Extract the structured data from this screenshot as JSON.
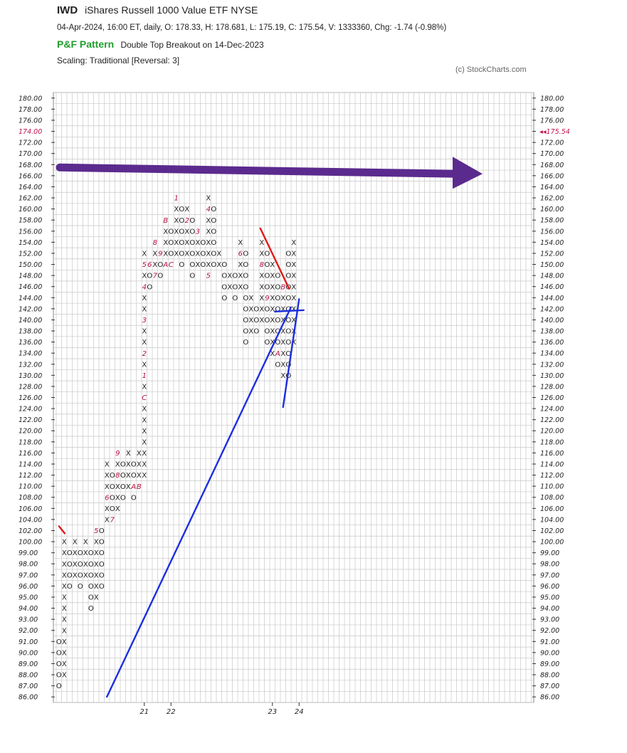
{
  "header": {
    "ticker": "IWD",
    "name": "iShares Russell 1000 Value ETF  NYSE",
    "quote": "04-Apr-2024, 16:00 ET, daily, O: 178.33, H: 178.681, L: 175.19, C: 175.54, V: 1333360, Chg: -1.74 (-0.98%)",
    "pattern_label": "P&F Pattern",
    "pattern_text": "Double Top Breakout on 14-Dec-2023",
    "scaling": "Scaling: Traditional [Reversal: 3]",
    "copyright": "(c) StockCharts.com"
  },
  "chart_data": {
    "type": "point-and-figure",
    "boxes": [
      "180.00",
      "178.00",
      "176.00",
      "174.00",
      "172.00",
      "170.00",
      "168.00",
      "166.00",
      "164.00",
      "162.00",
      "160.00",
      "158.00",
      "156.00",
      "154.00",
      "152.00",
      "150.00",
      "148.00",
      "146.00",
      "144.00",
      "142.00",
      "140.00",
      "138.00",
      "136.00",
      "134.00",
      "132.00",
      "130.00",
      "128.00",
      "126.00",
      "124.00",
      "122.00",
      "120.00",
      "118.00",
      "116.00",
      "114.00",
      "112.00",
      "110.00",
      "108.00",
      "106.00",
      "104.00",
      "102.00",
      "100.00",
      "99.00",
      "98.00",
      "97.00",
      "96.00",
      "95.00",
      "94.00",
      "93.00",
      "92.00",
      "91.00",
      "90.00",
      "89.00",
      "88.00",
      "87.00",
      "86.00"
    ],
    "highlight_level": "174.00",
    "last_price_label": "◂◂175.54",
    "x_labels": [
      {
        "col": 16,
        "text": "21"
      },
      {
        "col": 21,
        "text": "22"
      },
      {
        "col": 40,
        "text": "23"
      },
      {
        "col": 45,
        "text": "24"
      }
    ],
    "columns": [
      {
        "t": "O",
        "top": "91.00",
        "bottom": "87.00",
        "marks": {
          "92.00": "4"
        }
      },
      {
        "t": "X",
        "top": "100.00",
        "bottom": "88.00"
      },
      {
        "t": "O",
        "top": "99.00",
        "bottom": "96.00"
      },
      {
        "t": "X",
        "top": "100.00",
        "bottom": "97.00"
      },
      {
        "t": "O",
        "top": "99.00",
        "bottom": "96.00"
      },
      {
        "t": "X",
        "top": "100.00",
        "bottom": "97.00"
      },
      {
        "t": "O",
        "top": "99.00",
        "bottom": "94.00"
      },
      {
        "t": "X",
        "top": "102.00",
        "bottom": "95.00",
        "marks": {
          "102.00": "5"
        }
      },
      {
        "t": "O",
        "top": "102.00",
        "bottom": "96.00"
      },
      {
        "t": "X",
        "top": "114.00",
        "bottom": "104.00",
        "marks": {
          "108.00": "6"
        }
      },
      {
        "t": "O",
        "top": "112.00",
        "bottom": "104.00",
        "marks": {
          "104.00": "7"
        }
      },
      {
        "t": "X",
        "top": "116.00",
        "bottom": "106.00",
        "marks": {
          "116.00": "9",
          "112.00": "8"
        }
      },
      {
        "t": "O",
        "top": "114.00",
        "bottom": "108.00"
      },
      {
        "t": "X",
        "top": "116.00",
        "bottom": "110.00"
      },
      {
        "t": "O",
        "top": "114.00",
        "bottom": "108.00",
        "marks": {
          "110.00": "A"
        }
      },
      {
        "t": "X",
        "top": "116.00",
        "bottom": "110.00",
        "marks": {
          "110.00": "B"
        }
      },
      {
        "t": "X",
        "top": "152.00",
        "bottom": "112.00",
        "marks": {
          "150.00": "5",
          "146.00": "4",
          "140.00": "3",
          "134.00": "2",
          "130.00": "1",
          "126.00": "C"
        }
      },
      {
        "t": "O",
        "top": "150.00",
        "bottom": "146.00",
        "marks": {
          "150.00": "6"
        }
      },
      {
        "t": "X",
        "top": "154.00",
        "bottom": "148.00",
        "marks": {
          "154.00": "8",
          "148.00": "7"
        }
      },
      {
        "t": "O",
        "top": "152.00",
        "bottom": "148.00",
        "marks": {
          "152.00": "9"
        }
      },
      {
        "t": "X",
        "top": "158.00",
        "bottom": "150.00",
        "marks": {
          "158.00": "B",
          "150.00": "A"
        }
      },
      {
        "t": "O",
        "top": "156.00",
        "bottom": "150.00",
        "marks": {
          "150.00": "C"
        }
      },
      {
        "t": "X",
        "top": "162.00",
        "bottom": "152.00",
        "marks": {
          "162.00": "1"
        }
      },
      {
        "t": "O",
        "top": "160.00",
        "bottom": "150.00"
      },
      {
        "t": "X",
        "top": "160.00",
        "bottom": "152.00",
        "marks": {
          "158.00": "2"
        }
      },
      {
        "t": "O",
        "top": "158.00",
        "bottom": "148.00"
      },
      {
        "t": "X",
        "top": "156.00",
        "bottom": "150.00",
        "marks": {
          "156.00": "3"
        }
      },
      {
        "t": "O",
        "top": "154.00",
        "bottom": "150.00"
      },
      {
        "t": "X",
        "top": "162.00",
        "bottom": "148.00",
        "marks": {
          "160.00": "4",
          "148.00": "5"
        }
      },
      {
        "t": "O",
        "top": "160.00",
        "bottom": "150.00"
      },
      {
        "t": "X",
        "top": "152.00",
        "bottom": "150.00"
      },
      {
        "t": "O",
        "top": "150.00",
        "bottom": "144.00"
      },
      {
        "t": "X",
        "top": "148.00",
        "bottom": "146.00"
      },
      {
        "t": "O",
        "top": "148.00",
        "bottom": "144.00"
      },
      {
        "t": "X",
        "top": "154.00",
        "bottom": "146.00",
        "marks": {
          "152.00": "6"
        }
      },
      {
        "t": "O",
        "top": "152.00",
        "bottom": "136.00"
      },
      {
        "t": "X",
        "top": "144.00",
        "bottom": "138.00",
        "marks": {
          "136.00": "7"
        }
      },
      {
        "t": "O",
        "top": "142.00",
        "bottom": "138.00"
      },
      {
        "t": "X",
        "top": "154.00",
        "bottom": "140.00",
        "marks": {
          "150.00": "8"
        }
      },
      {
        "t": "O",
        "top": "152.00",
        "bottom": "136.00",
        "marks": {
          "144.00": "9"
        }
      },
      {
        "t": "X",
        "top": "150.00",
        "bottom": "134.00"
      },
      {
        "t": "O",
        "top": "148.00",
        "bottom": "132.00",
        "marks": {
          "134.00": "A"
        }
      },
      {
        "t": "X",
        "top": "146.00",
        "bottom": "130.00",
        "marks": {
          "146.00": "B"
        }
      },
      {
        "t": "O",
        "top": "152.00",
        "bottom": "130.00"
      },
      {
        "t": "X",
        "top": "154.00",
        "bottom": "136.00"
      }
    ]
  }
}
